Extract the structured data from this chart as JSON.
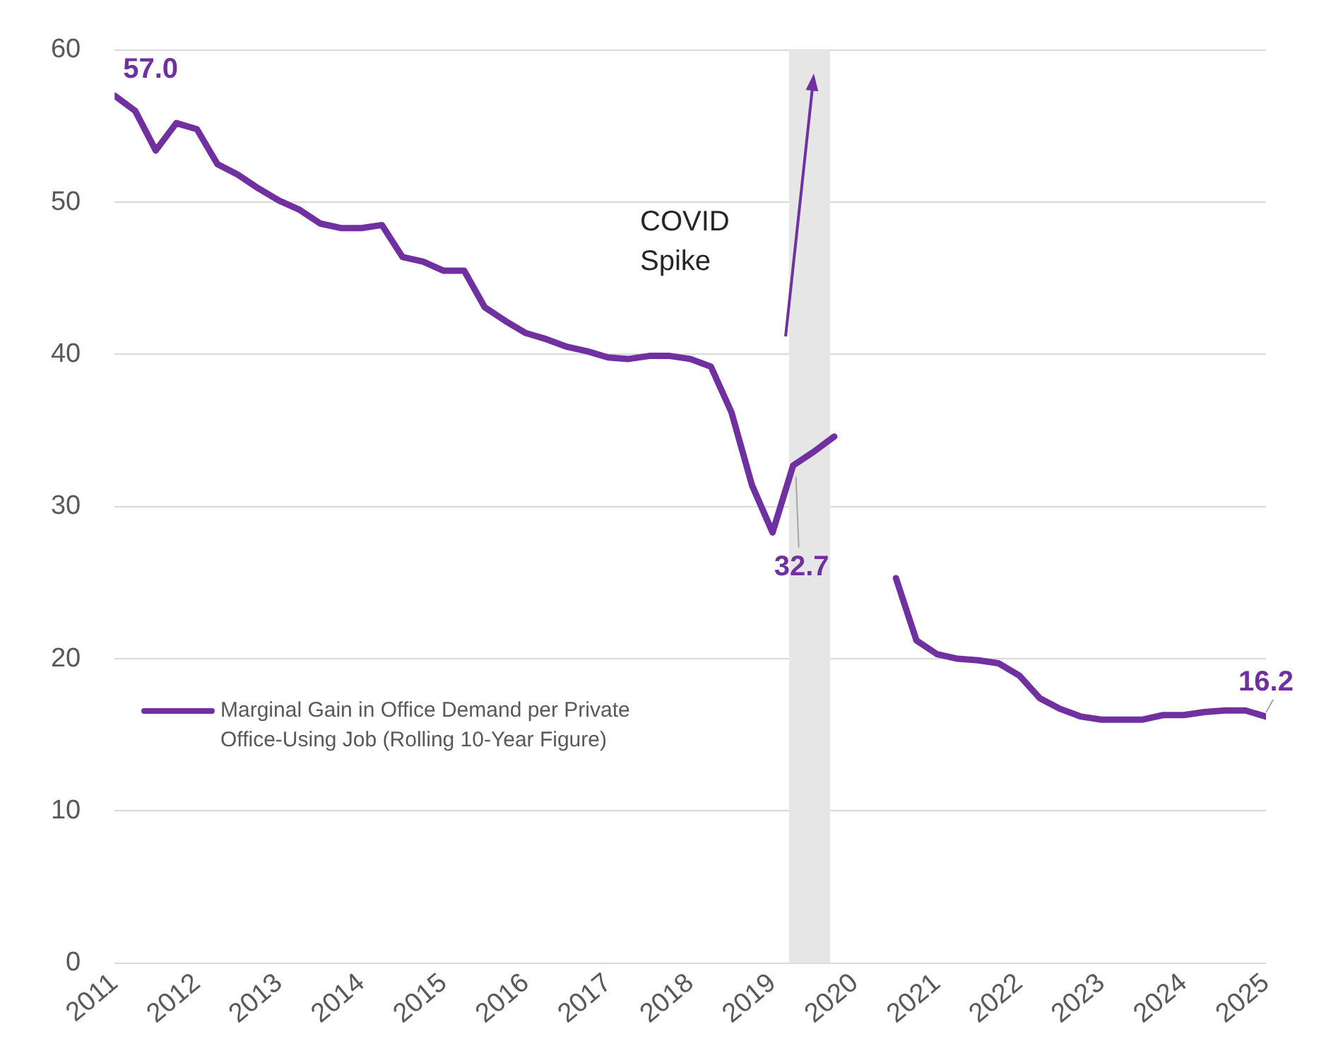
{
  "chart_data": {
    "type": "line",
    "x": [
      2011,
      2011.25,
      2011.5,
      2011.75,
      2012,
      2012.25,
      2012.5,
      2012.75,
      2013,
      2013.25,
      2013.5,
      2013.75,
      2014,
      2014.25,
      2014.5,
      2014.75,
      2015,
      2015.25,
      2015.5,
      2015.75,
      2016,
      2016.25,
      2016.5,
      2016.75,
      2017,
      2017.25,
      2017.5,
      2017.75,
      2018,
      2018.25,
      2018.5,
      2018.75,
      2019,
      2019.25,
      2019.5,
      2019.75,
      2020,
      2020.25,
      2020.5,
      2020.75,
      2021,
      2021.25,
      2021.5,
      2021.75,
      2022,
      2022.25,
      2022.5,
      2022.75,
      2023,
      2023.25,
      2023.5,
      2023.75,
      2024,
      2024.25,
      2024.5,
      2024.75,
      2025
    ],
    "series": [
      {
        "name": "Marginal Gain in Office Demand per Private Office-Using Job (Rolling 10-Year Figure)",
        "color": "#7030a0",
        "values": [
          57.0,
          56.0,
          53.4,
          55.2,
          54.8,
          52.5,
          51.8,
          50.9,
          50.1,
          49.5,
          48.6,
          48.3,
          48.3,
          48.5,
          46.4,
          46.1,
          45.5,
          45.5,
          43.1,
          42.2,
          41.4,
          41.0,
          40.5,
          40.2,
          39.8,
          39.7,
          39.9,
          39.9,
          39.7,
          39.2,
          36.2,
          31.4,
          28.3,
          32.7,
          33.6,
          34.6,
          null,
          null,
          25.3,
          21.2,
          20.3,
          20.0,
          19.9,
          19.7,
          18.9,
          17.4,
          16.7,
          16.2,
          16.0,
          16.0,
          16.0,
          16.3,
          16.3,
          16.5,
          16.6,
          16.6,
          16.2
        ],
        "value_labels": [
          "57.0",
          null,
          null,
          null,
          null,
          null,
          null,
          null,
          null,
          null,
          null,
          null,
          null,
          null,
          null,
          null,
          null,
          null,
          null,
          null,
          null,
          null,
          null,
          null,
          null,
          null,
          null,
          null,
          null,
          null,
          null,
          null,
          null,
          "32.7",
          null,
          null,
          null,
          null,
          null,
          null,
          null,
          null,
          null,
          null,
          null,
          null,
          null,
          null,
          null,
          null,
          null,
          null,
          null,
          null,
          null,
          null,
          "16.2"
        ]
      }
    ],
    "xlim": [
      2011,
      2025
    ],
    "xticks": [
      2011,
      2012,
      2013,
      2014,
      2015,
      2016,
      2017,
      2018,
      2019,
      2020,
      2021,
      2022,
      2023,
      2024,
      2025
    ],
    "ylim": [
      0,
      60
    ],
    "yticks": [
      0,
      10,
      20,
      30,
      40,
      50,
      60
    ],
    "bands": [
      {
        "axis": "x",
        "from": 2019.2,
        "to": 2019.7,
        "color": "#e6e6e6"
      }
    ],
    "annotations": [
      "COVID Spike"
    ],
    "grid": "y",
    "legend": "bottom left",
    "marker": "none",
    "line_style": "solid"
  }
}
